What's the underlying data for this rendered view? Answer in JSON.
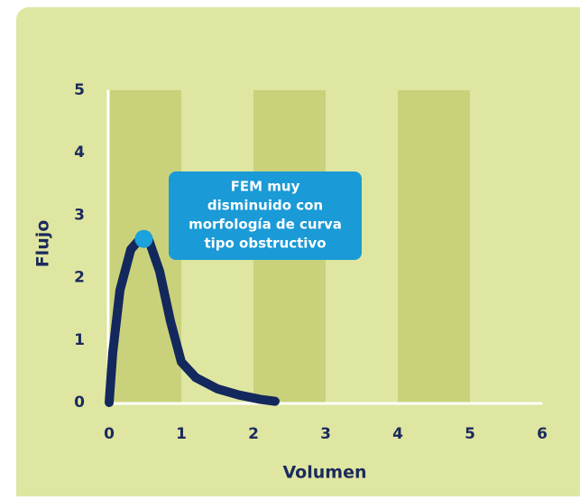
{
  "chart_data": {
    "type": "line",
    "x_label": "Volumen",
    "y_label": "Flujo",
    "xlim": [
      0,
      6
    ],
    "ylim": [
      0,
      5
    ],
    "xticks": [
      0,
      1,
      2,
      3,
      4,
      5,
      6
    ],
    "yticks": [
      0,
      1,
      2,
      3,
      4,
      5
    ],
    "shaded_bands": [
      [
        0,
        1
      ],
      [
        2,
        3
      ],
      [
        4,
        5
      ]
    ],
    "band_color": "#c9d27b",
    "background_color": "#dfe6a1",
    "series": [
      {
        "color": "#13285c",
        "x": [
          0,
          0.05,
          0.15,
          0.3,
          0.45,
          0.55,
          0.7,
          0.85,
          1.0,
          1.2,
          1.5,
          1.8,
          2.1,
          2.3
        ],
        "values": [
          0,
          0.8,
          1.8,
          2.45,
          2.65,
          2.6,
          2.1,
          1.3,
          0.65,
          0.4,
          0.22,
          0.12,
          0.05,
          0.02
        ]
      }
    ],
    "annotation": {
      "x": 0.48,
      "y": 2.62,
      "point_color": "#1ba1dc",
      "box_color": "#1a9ad6",
      "lines": [
        "FEM muy",
        "disminuido con",
        "morfología de curva",
        "tipo obstructivo"
      ]
    }
  }
}
